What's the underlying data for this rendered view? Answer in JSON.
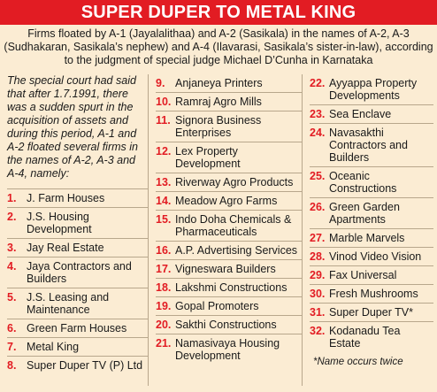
{
  "title": "SUPER DUPER TO METAL KING",
  "subtitle": "Firms floated by A-1 (Jayalalithaa) and A-2 (Sasikala) in the names of A-2, A-3 (Sudhakaran, Sasikala’s nephew) and A-4 (Ilavarasi, Sasikala’s sister-in-law), according to the judgment of special judge Michael D’Cunha in Karnataka",
  "intro": "The special court had said that after 1.7.1991, there was a sudden spurt in the acquisition of assets and during this period, A-1 and A-2 floated several firms in the names of A-2, A-3 and A-4, namely:",
  "firms_col1": [
    {
      "num": "1.",
      "name": "J. Farm Houses"
    },
    {
      "num": "2.",
      "name": "J.S. Housing Development"
    },
    {
      "num": "3.",
      "name": "Jay Real Estate"
    },
    {
      "num": "4.",
      "name": "Jaya Contractors and Builders"
    },
    {
      "num": "5.",
      "name": "J.S. Leasing and Maintenance"
    },
    {
      "num": "6.",
      "name": "Green Farm Houses"
    },
    {
      "num": "7.",
      "name": "Metal King"
    },
    {
      "num": "8.",
      "name": "Super Duper TV (P) Ltd"
    }
  ],
  "firms_col2": [
    {
      "num": "9.",
      "name": "Anjaneya Printers"
    },
    {
      "num": "10.",
      "name": "Ramraj Agro Mills"
    },
    {
      "num": "11.",
      "name": "Signora Business Enterprises"
    },
    {
      "num": "12.",
      "name": "Lex Property Development"
    },
    {
      "num": "13.",
      "name": "Riverway Agro Products"
    },
    {
      "num": "14.",
      "name": "Meadow Agro Farms"
    },
    {
      "num": "15.",
      "name": "Indo Doha Chemicals & Pharmaceuticals"
    },
    {
      "num": "16.",
      "name": "A.P. Advertising Services"
    },
    {
      "num": "17.",
      "name": "Vigneswara Builders"
    },
    {
      "num": "18.",
      "name": "Lakshmi Constructions"
    },
    {
      "num": "19.",
      "name": "Gopal Promoters"
    },
    {
      "num": "20.",
      "name": "Sakthi Constructions"
    },
    {
      "num": "21.",
      "name": "Namasivaya Housing Development"
    }
  ],
  "firms_col3": [
    {
      "num": "22.",
      "name": "Ayyappa Property Developments"
    },
    {
      "num": "23.",
      "name": "Sea Enclave"
    },
    {
      "num": "24.",
      "name": "Navasakthi Contractors and Builders"
    },
    {
      "num": "25.",
      "name": "Oceanic Constructions"
    },
    {
      "num": "26.",
      "name": "Green Garden Apartments"
    },
    {
      "num": "27.",
      "name": "Marble Marvels"
    },
    {
      "num": "28.",
      "name": "Vinod Video Vision"
    },
    {
      "num": "29.",
      "name": "Fax Universal"
    },
    {
      "num": "30.",
      "name": "Fresh Mushrooms"
    },
    {
      "num": "31.",
      "name": "Super Duper TV*"
    },
    {
      "num": "32.",
      "name": "Kodanadu Tea Estate"
    }
  ],
  "footnote": "*Name occurs twice",
  "colors": {
    "accent": "#e21c23",
    "background": "#fbecd3"
  }
}
